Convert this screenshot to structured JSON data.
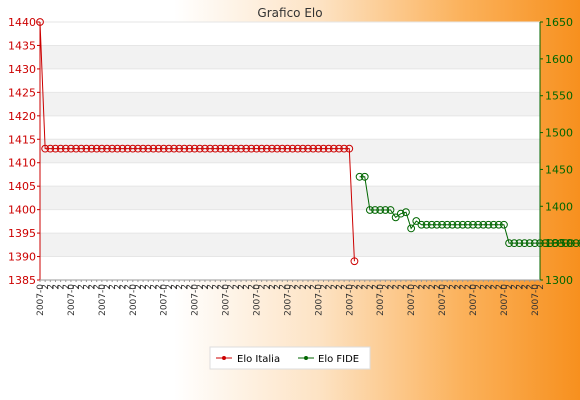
{
  "chart_data": {
    "type": "line",
    "title": "Grafico Elo",
    "grid": true,
    "legend_position": "bottom-center",
    "axes": {
      "left": {
        "ylim": [
          1385,
          1440
        ],
        "ticks": [
          1385,
          1390,
          1395,
          1400,
          1405,
          1410,
          1415,
          1420,
          1425,
          1430,
          1435,
          1440
        ],
        "tick_color": "#cc0000"
      },
      "right": {
        "ylim": [
          1300,
          1650
        ],
        "ticks": [
          1300,
          1350,
          1400,
          1450,
          1500,
          1550,
          1600,
          1650
        ],
        "tick_color": "#006600"
      }
    },
    "x_count": 98,
    "x_tick_labels": [
      "2007-0",
      "2",
      "2",
      "2",
      "2",
      "2"
    ],
    "series": [
      {
        "name": "Elo Italia",
        "axis": "left",
        "color": "#cc0000",
        "x": [
          0,
          1,
          2,
          3,
          4,
          5,
          6,
          7,
          8,
          9,
          10,
          11,
          12,
          13,
          14,
          15,
          16,
          17,
          18,
          19,
          20,
          21,
          22,
          23,
          24,
          25,
          26,
          27,
          28,
          29,
          30,
          31,
          32,
          33,
          34,
          35,
          36,
          37,
          38,
          39,
          40,
          41,
          42,
          43,
          44,
          45,
          46,
          47,
          48,
          49,
          50,
          51,
          52,
          53,
          54,
          55,
          56,
          57,
          58,
          59,
          60,
          61
        ],
        "values": [
          1440,
          1413,
          1413,
          1413,
          1413,
          1413,
          1413,
          1413,
          1413,
          1413,
          1413,
          1413,
          1413,
          1413,
          1413,
          1413,
          1413,
          1413,
          1413,
          1413,
          1413,
          1413,
          1413,
          1413,
          1413,
          1413,
          1413,
          1413,
          1413,
          1413,
          1413,
          1413,
          1413,
          1413,
          1413,
          1413,
          1413,
          1413,
          1413,
          1413,
          1413,
          1413,
          1413,
          1413,
          1413,
          1413,
          1413,
          1413,
          1413,
          1413,
          1413,
          1413,
          1413,
          1413,
          1413,
          1413,
          1413,
          1413,
          1413,
          1413,
          1413,
          1389
        ]
      },
      {
        "name": "Elo FIDE",
        "axis": "right",
        "color": "#006600",
        "x": [
          62,
          63,
          64,
          65,
          66,
          67,
          68,
          69,
          70,
          71,
          72,
          73,
          74,
          75,
          76,
          77,
          78,
          79,
          80,
          81,
          82,
          83,
          84,
          85,
          86,
          87,
          88,
          89,
          90,
          91,
          92,
          93,
          94,
          95,
          96,
          97,
          98,
          99,
          100,
          101,
          102,
          103,
          104,
          105,
          106,
          107,
          108,
          109,
          110,
          111,
          112,
          113,
          114,
          115,
          116,
          117,
          118,
          119,
          120,
          121,
          122,
          123,
          124,
          125,
          126,
          127,
          128,
          129,
          130,
          131,
          132,
          133,
          134,
          135,
          136,
          137,
          138,
          139,
          140,
          141
        ],
        "values": [
          1440,
          1440,
          1395,
          1395,
          1395,
          1395,
          1395,
          1385,
          1390,
          1392,
          1370,
          1380,
          1375,
          1375,
          1375,
          1375,
          1375,
          1375,
          1375,
          1375,
          1375,
          1375,
          1375,
          1375,
          1375,
          1375,
          1375,
          1375,
          1375,
          1350,
          1350,
          1350,
          1350,
          1350,
          1350,
          1350,
          1350,
          1350,
          1350,
          1350,
          1350,
          1350,
          1350,
          1350,
          1350,
          1350,
          1350,
          1350,
          1350,
          1350,
          1350,
          1350,
          1350,
          1350,
          1350,
          1350,
          1350,
          1350,
          1350,
          1350,
          1350,
          1350,
          1350,
          1350,
          1350,
          1350,
          1350,
          1350,
          1350,
          1350,
          1350,
          1350,
          1350,
          1350,
          1350,
          1350,
          1350,
          1350,
          1350,
          1350
        ]
      }
    ]
  },
  "legend": {
    "items": [
      {
        "label": "Elo Italia",
        "color": "#cc0000"
      },
      {
        "label": "Elo FIDE",
        "color": "#006600"
      }
    ]
  }
}
